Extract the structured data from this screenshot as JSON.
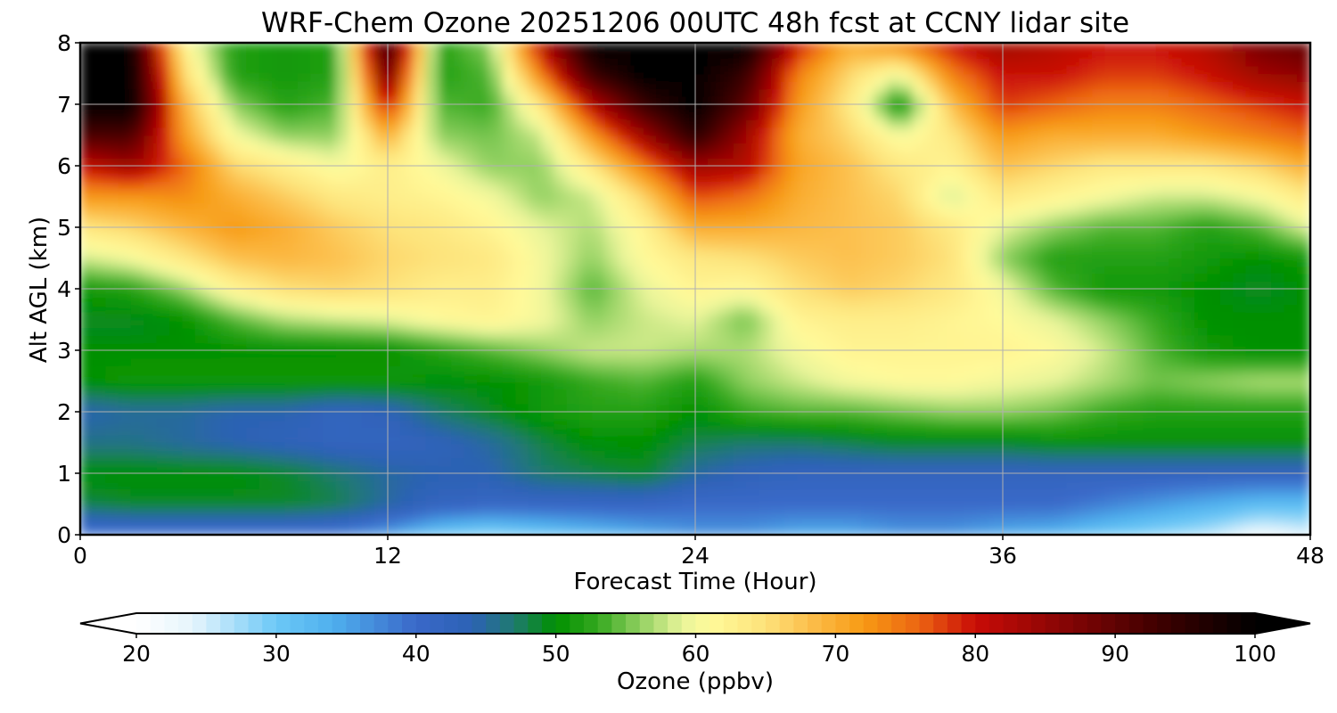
{
  "chart_data": {
    "type": "heatmap",
    "title": "WRF-Chem Ozone  20251206 00UTC 48h fcst at CCNY lidar site",
    "xlabel": "Forecast Time (Hour)",
    "ylabel": "Alt AGL (km)",
    "xlim": [
      0,
      48
    ],
    "ylim": [
      0,
      8
    ],
    "x_ticks": [
      "0",
      "12",
      "24",
      "36",
      "48"
    ],
    "y_ticks": [
      "0",
      "1",
      "2",
      "3",
      "4",
      "5",
      "6",
      "7",
      "8"
    ],
    "grid": true,
    "colorbar": {
      "label": "Ozone  (ppbv)",
      "range": [
        20,
        100
      ],
      "ticks": [
        "20",
        "30",
        "40",
        "50",
        "60",
        "70",
        "80",
        "90",
        "100"
      ],
      "extend": "both",
      "colormap": [
        {
          "value": 20,
          "color": "#ffffff"
        },
        {
          "value": 24,
          "color": "#e6f5fc"
        },
        {
          "value": 30,
          "color": "#6cc8f6"
        },
        {
          "value": 34,
          "color": "#4fb0ee"
        },
        {
          "value": 40,
          "color": "#3a68c8"
        },
        {
          "value": 44,
          "color": "#2c62b4"
        },
        {
          "value": 47,
          "color": "#1f7a70"
        },
        {
          "value": 50,
          "color": "#009000"
        },
        {
          "value": 53,
          "color": "#35a81f"
        },
        {
          "value": 56,
          "color": "#90d060"
        },
        {
          "value": 59,
          "color": "#e8f49a"
        },
        {
          "value": 61,
          "color": "#fffa9a"
        },
        {
          "value": 65,
          "color": "#fde27a"
        },
        {
          "value": 68,
          "color": "#fcc04e"
        },
        {
          "value": 72,
          "color": "#f79a14"
        },
        {
          "value": 76,
          "color": "#ec6412"
        },
        {
          "value": 80,
          "color": "#c80c06"
        },
        {
          "value": 86,
          "color": "#8a0505"
        },
        {
          "value": 93,
          "color": "#400000"
        },
        {
          "value": 100,
          "color": "#000000"
        }
      ]
    },
    "x": [
      0,
      2,
      4,
      6,
      8,
      10,
      12,
      14,
      16,
      18,
      20,
      22,
      24,
      26,
      28,
      30,
      32,
      34,
      36,
      38,
      40,
      42,
      44,
      46,
      48
    ],
    "y": [
      0,
      0.5,
      1,
      1.5,
      2,
      2.5,
      3,
      3.5,
      4,
      4.5,
      5,
      5.5,
      6,
      6.5,
      7,
      7.5,
      8
    ],
    "z": [
      [
        38,
        38,
        38,
        38,
        38,
        38,
        35,
        30,
        28,
        30,
        32,
        34,
        36,
        36,
        34,
        34,
        36,
        36,
        34,
        33,
        30,
        28,
        26,
        22,
        24
      ],
      [
        48,
        49,
        49,
        49,
        49,
        48,
        45,
        42,
        41,
        41,
        41,
        41,
        40,
        40,
        40,
        40,
        40,
        40,
        40,
        40,
        38,
        36,
        34,
        32,
        32
      ],
      [
        50,
        50,
        50,
        50,
        49,
        47,
        45,
        44,
        44,
        47,
        48,
        49,
        45,
        43,
        42,
        42,
        42,
        42,
        42,
        42,
        42,
        42,
        42,
        42,
        42
      ],
      [
        46,
        46,
        45,
        44,
        43,
        42,
        42,
        43,
        45,
        48,
        50,
        50,
        48,
        47,
        47,
        48,
        49,
        49,
        49,
        50,
        50,
        50,
        50,
        50,
        50
      ],
      [
        44,
        45,
        45,
        44,
        44,
        42,
        43,
        47,
        49,
        51,
        52,
        52,
        50,
        53,
        54,
        54,
        55,
        56,
        56,
        55,
        53,
        52,
        52,
        52,
        52
      ],
      [
        50,
        51,
        51,
        51,
        51,
        51,
        51,
        50,
        50,
        51,
        53,
        54,
        52,
        56,
        58,
        60,
        61,
        61,
        60,
        59,
        57,
        55,
        56,
        57,
        57
      ],
      [
        50,
        50,
        50,
        50,
        50,
        50,
        50,
        52,
        54,
        56,
        58,
        58,
        57,
        57,
        60,
        62,
        62,
        62,
        62,
        61,
        58,
        54,
        51,
        50,
        50
      ],
      [
        49,
        49,
        50,
        54,
        57,
        58,
        59,
        61,
        62,
        60,
        56,
        58,
        59,
        55,
        62,
        63,
        63,
        62,
        61,
        59,
        56,
        53,
        50,
        50,
        50
      ],
      [
        51,
        52,
        56,
        62,
        65,
        66,
        65,
        63,
        63,
        60,
        54,
        59,
        62,
        61,
        65,
        67,
        66,
        64,
        60,
        54,
        51,
        51,
        50,
        49,
        50
      ],
      [
        58,
        60,
        64,
        68,
        69,
        68,
        66,
        65,
        64,
        60,
        56,
        61,
        64,
        65,
        67,
        68,
        67,
        65,
        56,
        52,
        52,
        52,
        51,
        50,
        51
      ],
      [
        64,
        66,
        69,
        72,
        70,
        67,
        65,
        64,
        62,
        59,
        57,
        62,
        70,
        70,
        69,
        68,
        67,
        64,
        59,
        56,
        54,
        54,
        52,
        54,
        59
      ],
      [
        72,
        72,
        73,
        70,
        67,
        64,
        63,
        62,
        60,
        56,
        58,
        66,
        77,
        75,
        70,
        68,
        66,
        58,
        64,
        62,
        60,
        58,
        58,
        60,
        64
      ],
      [
        80,
        84,
        76,
        66,
        63,
        60,
        63,
        60,
        56,
        56,
        64,
        74,
        84,
        82,
        71,
        68,
        64,
        62,
        68,
        66,
        64,
        64,
        64,
        66,
        70
      ],
      [
        92,
        92,
        72,
        60,
        56,
        56,
        70,
        56,
        55,
        58,
        72,
        84,
        96,
        84,
        70,
        66,
        60,
        64,
        72,
        70,
        70,
        70,
        72,
        74,
        76
      ],
      [
        100,
        100,
        70,
        56,
        52,
        54,
        80,
        54,
        53,
        64,
        82,
        94,
        100,
        90,
        72,
        64,
        50,
        68,
        78,
        76,
        74,
        74,
        76,
        78,
        80
      ],
      [
        100,
        100,
        66,
        52,
        51,
        52,
        90,
        52,
        54,
        74,
        94,
        100,
        100,
        94,
        74,
        66,
        60,
        74,
        80,
        80,
        78,
        78,
        80,
        84,
        86
      ],
      [
        100,
        100,
        62,
        52,
        51,
        52,
        96,
        52,
        56,
        82,
        100,
        100,
        100,
        100,
        80,
        70,
        74,
        80,
        84,
        82,
        80,
        80,
        82,
        88,
        90
      ]
    ]
  }
}
